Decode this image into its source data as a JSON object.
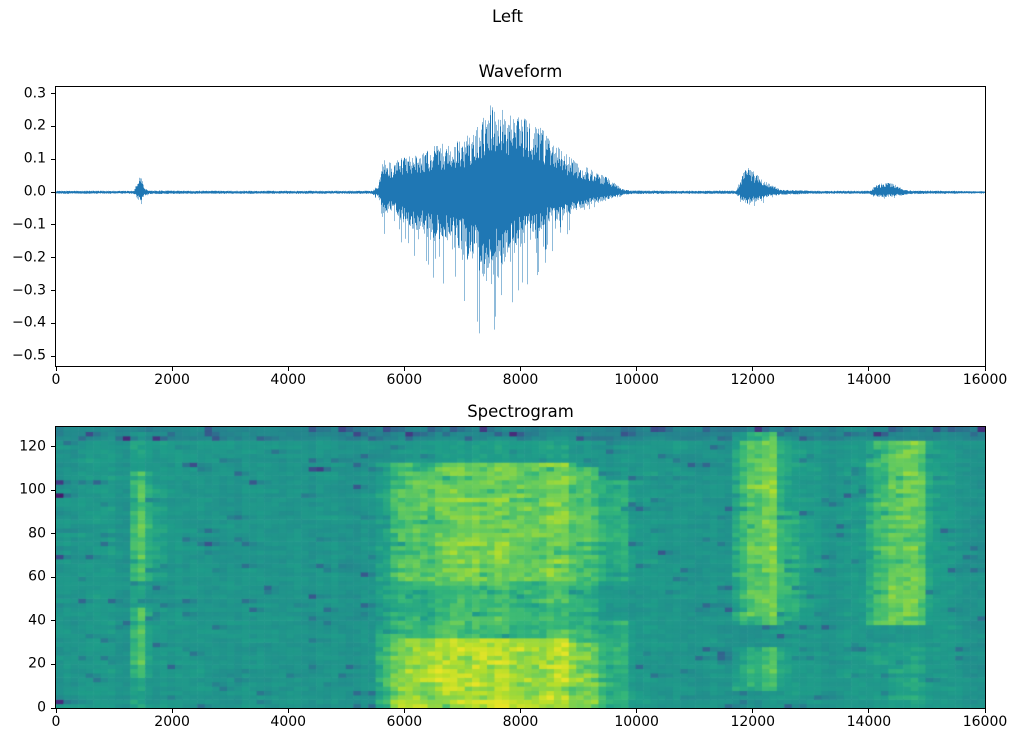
{
  "figure": {
    "title": "Left",
    "background_color": "#ffffff",
    "text_color": "#000000",
    "axis_color": "#000000"
  },
  "chart_data": [
    {
      "type": "line",
      "title": "Waveform",
      "line_color": "#1f77b4",
      "xlim": [
        0,
        16000
      ],
      "ylim": [
        -0.53,
        0.32
      ],
      "xticks": [
        0,
        2000,
        4000,
        6000,
        8000,
        10000,
        12000,
        14000,
        16000
      ],
      "xtick_labels": [
        "0",
        "2000",
        "4000",
        "6000",
        "8000",
        "10000",
        "12000",
        "14000",
        "16000"
      ],
      "yticks": [
        0.3,
        0.2,
        0.1,
        0.0,
        -0.1,
        -0.2,
        -0.3,
        -0.4,
        -0.5
      ],
      "ytick_labels": [
        "0.3",
        "0.2",
        "0.1",
        "0.0",
        "−0.1",
        "−0.2",
        "−0.3",
        "−0.4",
        "−0.5"
      ],
      "envelope_points": [
        [
          0,
          0.004,
          -0.004
        ],
        [
          1340,
          0.004,
          -0.004
        ],
        [
          1400,
          0.04,
          -0.038
        ],
        [
          1460,
          0.05,
          -0.045
        ],
        [
          1530,
          0.012,
          -0.012
        ],
        [
          1620,
          0.005,
          -0.005
        ],
        [
          2600,
          0.004,
          -0.004
        ],
        [
          4000,
          0.004,
          -0.004
        ],
        [
          5450,
          0.004,
          -0.004
        ],
        [
          5560,
          0.025,
          -0.03
        ],
        [
          5620,
          0.1,
          -0.14
        ],
        [
          5800,
          0.09,
          -0.11
        ],
        [
          6000,
          0.11,
          -0.18
        ],
        [
          6200,
          0.12,
          -0.22
        ],
        [
          6400,
          0.13,
          -0.26
        ],
        [
          6600,
          0.15,
          -0.28
        ],
        [
          6800,
          0.15,
          -0.31
        ],
        [
          7000,
          0.16,
          -0.35
        ],
        [
          7200,
          0.19,
          -0.4
        ],
        [
          7350,
          0.23,
          -0.47
        ],
        [
          7500,
          0.27,
          -0.52
        ],
        [
          7650,
          0.26,
          -0.48
        ],
        [
          7800,
          0.24,
          -0.4
        ],
        [
          7950,
          0.23,
          -0.33
        ],
        [
          8100,
          0.23,
          -0.29
        ],
        [
          8300,
          0.21,
          -0.26
        ],
        [
          8500,
          0.16,
          -0.19
        ],
        [
          8700,
          0.13,
          -0.15
        ],
        [
          8900,
          0.1,
          -0.11
        ],
        [
          9100,
          0.08,
          -0.08
        ],
        [
          9300,
          0.06,
          -0.06
        ],
        [
          9450,
          0.05,
          -0.05
        ],
        [
          9600,
          0.03,
          -0.03
        ],
        [
          9750,
          0.01,
          -0.01
        ],
        [
          9900,
          0.005,
          -0.005
        ],
        [
          10800,
          0.004,
          -0.004
        ],
        [
          11720,
          0.005,
          -0.005
        ],
        [
          11800,
          0.045,
          -0.04
        ],
        [
          11900,
          0.08,
          -0.07
        ],
        [
          12000,
          0.065,
          -0.055
        ],
        [
          12150,
          0.045,
          -0.04
        ],
        [
          12300,
          0.025,
          -0.02
        ],
        [
          12480,
          0.008,
          -0.008
        ],
        [
          13000,
          0.004,
          -0.004
        ],
        [
          14020,
          0.004,
          -0.004
        ],
        [
          14120,
          0.022,
          -0.02
        ],
        [
          14280,
          0.03,
          -0.026
        ],
        [
          14430,
          0.025,
          -0.022
        ],
        [
          14560,
          0.012,
          -0.01
        ],
        [
          14700,
          0.005,
          -0.005
        ],
        [
          16000,
          0.003,
          -0.003
        ]
      ]
    },
    {
      "type": "heatmap",
      "title": "Spectrogram",
      "colormap": "viridis",
      "viridis_stops": [
        "#440154",
        "#482878",
        "#3e4989",
        "#31688e",
        "#26828e",
        "#21918c",
        "#1f9e89",
        "#35b779",
        "#6ece58",
        "#b5de2b",
        "#fde725"
      ],
      "xlim": [
        0,
        16000
      ],
      "ylim": [
        0,
        129
      ],
      "xticks": [
        0,
        2000,
        4000,
        6000,
        8000,
        10000,
        12000,
        14000,
        16000
      ],
      "xtick_labels": [
        "0",
        "2000",
        "4000",
        "6000",
        "8000",
        "10000",
        "12000",
        "14000",
        "16000"
      ],
      "yticks": [
        0,
        20,
        40,
        60,
        80,
        100,
        120
      ],
      "ytick_labels": [
        "0",
        "20",
        "40",
        "60",
        "80",
        "100",
        "120"
      ],
      "grid": {
        "cols": 125,
        "rows": 64
      },
      "base_level": 0.54,
      "cell_noise": 0.07,
      "column_noise": 0.05,
      "dark_speckle_rate": 0.04,
      "top_band_start": 123,
      "top_band_darken": 0.1,
      "segments": [
        {
          "x0": 1300,
          "x1": 1560,
          "bands": [
            [
              0,
              126,
              0.1
            ],
            [
              14,
              46,
              0.16
            ],
            [
              58,
              108,
              0.18
            ]
          ]
        },
        {
          "x0": 1560,
          "x1": 1760,
          "bands": [
            [
              58,
              100,
              0.07
            ]
          ]
        },
        {
          "x0": 5480,
          "x1": 5700,
          "bands": [
            [
              0,
              34,
              0.26
            ],
            [
              34,
              112,
              0.14
            ]
          ]
        },
        {
          "x0": 5700,
          "x1": 8800,
          "bands": [
            [
              0,
              32,
              0.36
            ],
            [
              32,
              58,
              0.18
            ],
            [
              58,
              112,
              0.26
            ],
            [
              112,
              124,
              0.06
            ]
          ]
        },
        {
          "x0": 8800,
          "x1": 9400,
          "bands": [
            [
              0,
              30,
              0.28
            ],
            [
              30,
              58,
              0.12
            ],
            [
              58,
              110,
              0.2
            ]
          ]
        },
        {
          "x0": 9400,
          "x1": 9850,
          "bands": [
            [
              0,
              40,
              0.12
            ],
            [
              58,
              104,
              0.1
            ]
          ]
        },
        {
          "x0": 11700,
          "x1": 12450,
          "bands": [
            [
              8,
              28,
              0.18
            ],
            [
              38,
              126,
              0.26
            ]
          ]
        },
        {
          "x0": 12450,
          "x1": 12750,
          "bands": [
            [
              40,
              90,
              0.08
            ]
          ]
        },
        {
          "x0": 13950,
          "x1": 14950,
          "bands": [
            [
              38,
              122,
              0.24
            ],
            [
              0,
              30,
              0.08
            ]
          ]
        }
      ]
    }
  ]
}
